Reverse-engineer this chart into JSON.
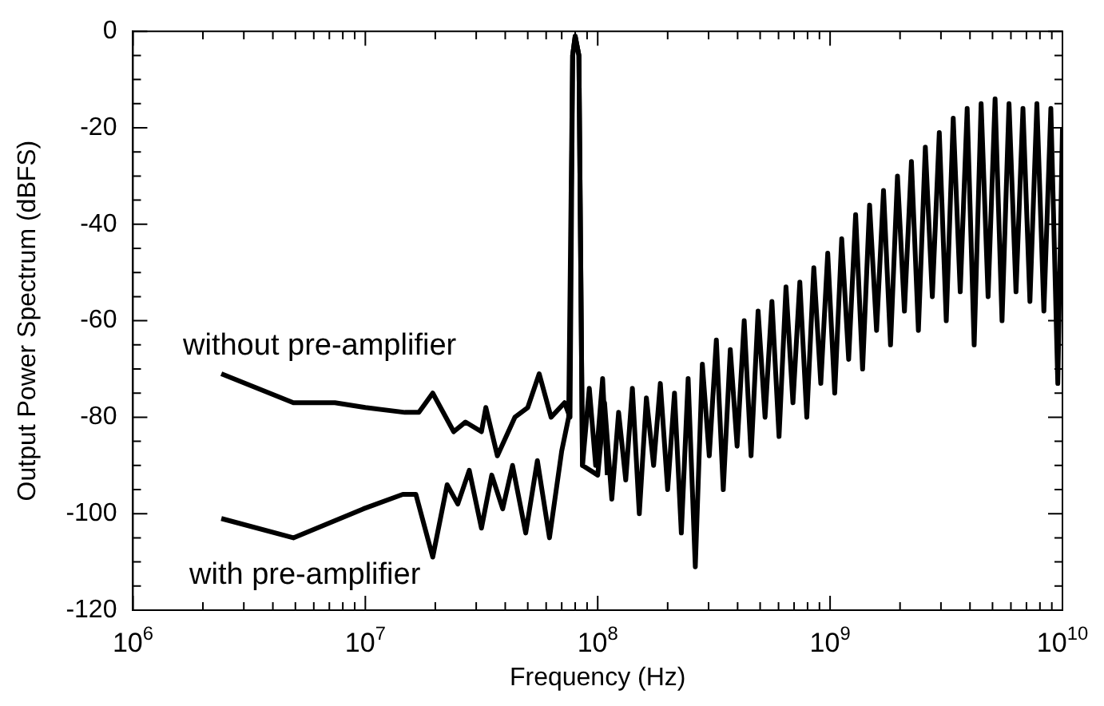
{
  "chart_data": {
    "type": "line",
    "xlabel": "Frequency (Hz)",
    "ylabel": "Output Power Spectrum (dBFS)",
    "log": "x",
    "grid": false,
    "legend": false,
    "marker": "none",
    "line_style": "solid",
    "xlim": [
      1000000,
      10000000000
    ],
    "ylim": [
      -120,
      0
    ],
    "xticks": [
      {
        "value": 1000000,
        "label": "10$^{6}$"
      },
      {
        "value": 2000000,
        "label": null
      },
      {
        "value": 3000000,
        "label": null
      },
      {
        "value": 4000000,
        "label": null
      },
      {
        "value": 5000000,
        "label": null
      },
      {
        "value": 6000000,
        "label": null
      },
      {
        "value": 7000000,
        "label": null
      },
      {
        "value": 8000000,
        "label": null
      },
      {
        "value": 9000000,
        "label": null
      },
      {
        "value": 10000000,
        "label": "10$^{7}$"
      },
      {
        "value": 20000000,
        "label": null
      },
      {
        "value": 30000000,
        "label": null
      },
      {
        "value": 40000000,
        "label": null
      },
      {
        "value": 50000000,
        "label": null
      },
      {
        "value": 60000000,
        "label": null
      },
      {
        "value": 70000000,
        "label": null
      },
      {
        "value": 80000000,
        "label": null
      },
      {
        "value": 90000000,
        "label": null
      },
      {
        "value": 100000000,
        "label": "10$^{8}$"
      },
      {
        "value": 200000000,
        "label": null
      },
      {
        "value": 300000000,
        "label": null
      },
      {
        "value": 400000000,
        "label": null
      },
      {
        "value": 500000000,
        "label": null
      },
      {
        "value": 600000000,
        "label": null
      },
      {
        "value": 700000000,
        "label": null
      },
      {
        "value": 800000000,
        "label": null
      },
      {
        "value": 900000000,
        "label": null
      },
      {
        "value": 1000000000,
        "label": "10$^{9}$"
      },
      {
        "value": 2000000000,
        "label": null
      },
      {
        "value": 3000000000,
        "label": null
      },
      {
        "value": 4000000000,
        "label": null
      },
      {
        "value": 5000000000,
        "label": null
      },
      {
        "value": 6000000000,
        "label": null
      },
      {
        "value": 7000000000,
        "label": null
      },
      {
        "value": 8000000000,
        "label": null
      },
      {
        "value": 9000000000,
        "label": null
      },
      {
        "value": 10000000000,
        "label": "10$^{10}$"
      }
    ],
    "yticks": [
      -120,
      {
        "value": -115,
        "label": null
      },
      {
        "value": -110,
        "label": null
      },
      {
        "value": -105,
        "label": null
      },
      -100,
      {
        "value": -95,
        "label": null
      },
      {
        "value": -90,
        "label": null
      },
      {
        "value": -85,
        "label": null
      },
      -80,
      {
        "value": -75,
        "label": null
      },
      {
        "value": -70,
        "label": null
      },
      {
        "value": -65,
        "label": null
      },
      -60,
      {
        "value": -55,
        "label": null
      },
      {
        "value": -50,
        "label": null
      },
      {
        "value": -45,
        "label": null
      },
      -40,
      {
        "value": -35,
        "label": null
      },
      {
        "value": -30,
        "label": null
      },
      {
        "value": -25,
        "label": null
      },
      -20,
      {
        "value": -15,
        "label": null
      },
      {
        "value": -10,
        "label": null
      },
      {
        "value": -5,
        "label": null
      },
      0
    ],
    "series": [
      {
        "name": "without pre-amplifier",
        "color": "#000000",
        "x": [
          2400000,
          4900000,
          7400000,
          10000000,
          14800000,
          17000000,
          19500000,
          24000000,
          27000000,
          31600000,
          33000000,
          37000000,
          44000000,
          50000000,
          56000000,
          63000000,
          72000000,
          76000000,
          78000000,
          80000000,
          83000000,
          86000000,
          92000000,
          98000000,
          105000000,
          110000000
        ],
        "values": [
          -71,
          -77,
          -77,
          -78,
          -79,
          -79,
          -75,
          -83,
          -81,
          -83,
          -78,
          -88,
          -80,
          -78,
          -71,
          -80,
          -77,
          -80,
          -5,
          -1,
          -5,
          -90,
          -74,
          -90,
          -72,
          -92
        ]
      },
      {
        "name": "with pre-amplifier",
        "color": "#000000",
        "x": [
          2400000,
          4900000,
          9800000,
          14500000,
          16500000,
          19500000,
          22500000,
          25000000,
          28000000,
          31600000,
          35000000,
          39000000,
          43000000,
          49000000,
          55000000,
          62000000,
          70000000,
          75000000,
          78000000,
          80000000,
          83000000,
          86000000,
          100000000,
          107000000,
          115000000,
          123000000,
          132000000,
          141000000,
          151000000,
          162000000,
          174000000,
          186000000,
          200000000,
          214000000,
          229000000,
          245000000,
          263000000,
          282000000,
          302000000,
          324000000,
          347000000,
          372000000,
          398000000,
          427000000,
          457000000,
          490000000,
          525000000,
          562000000,
          603000000,
          646000000,
          692000000,
          741000000,
          794000000,
          851000000,
          912000000,
          977000000,
          1047000000,
          1122000000,
          1202000000,
          1288000000,
          1380000000,
          1479000000,
          1585000000,
          1698000000,
          1820000000,
          1950000000,
          2089000000,
          2239000000,
          2399000000,
          2570000000,
          2754000000,
          2951000000,
          3162000000,
          3388000000,
          3631000000,
          3890000000,
          4169000000,
          4467000000,
          4786000000,
          5129000000,
          5495000000,
          5888000000,
          6310000000,
          6761000000,
          7244000000,
          7762000000,
          8318000000,
          8913000000,
          9550000000,
          10000000000
        ],
        "values": [
          -101,
          -105,
          -99,
          -96,
          -96,
          -109,
          -94,
          -98,
          -91,
          -103,
          -92,
          -99,
          -90,
          -104,
          -89,
          -105,
          -87,
          -80,
          -5,
          -1,
          -5,
          -90,
          -92,
          -77,
          -97,
          -79,
          -93,
          -74,
          -100,
          -76,
          -90,
          -73,
          -95,
          -75,
          -104,
          -72,
          -111,
          -69,
          -88,
          -64,
          -95,
          -66,
          -86,
          -60,
          -88,
          -58,
          -80,
          -56,
          -84,
          -53,
          -77,
          -52,
          -80,
          -49,
          -73,
          -46,
          -75,
          -43,
          -68,
          -38,
          -70,
          -36,
          -62,
          -33,
          -65,
          -30,
          -58,
          -27,
          -62,
          -24,
          -55,
          -21,
          -60,
          -18,
          -54,
          -16,
          -65,
          -15,
          -55,
          -14,
          -60,
          -15,
          -54,
          -16,
          -56,
          -15,
          -58,
          -16,
          -73,
          -20
        ]
      }
    ]
  }
}
